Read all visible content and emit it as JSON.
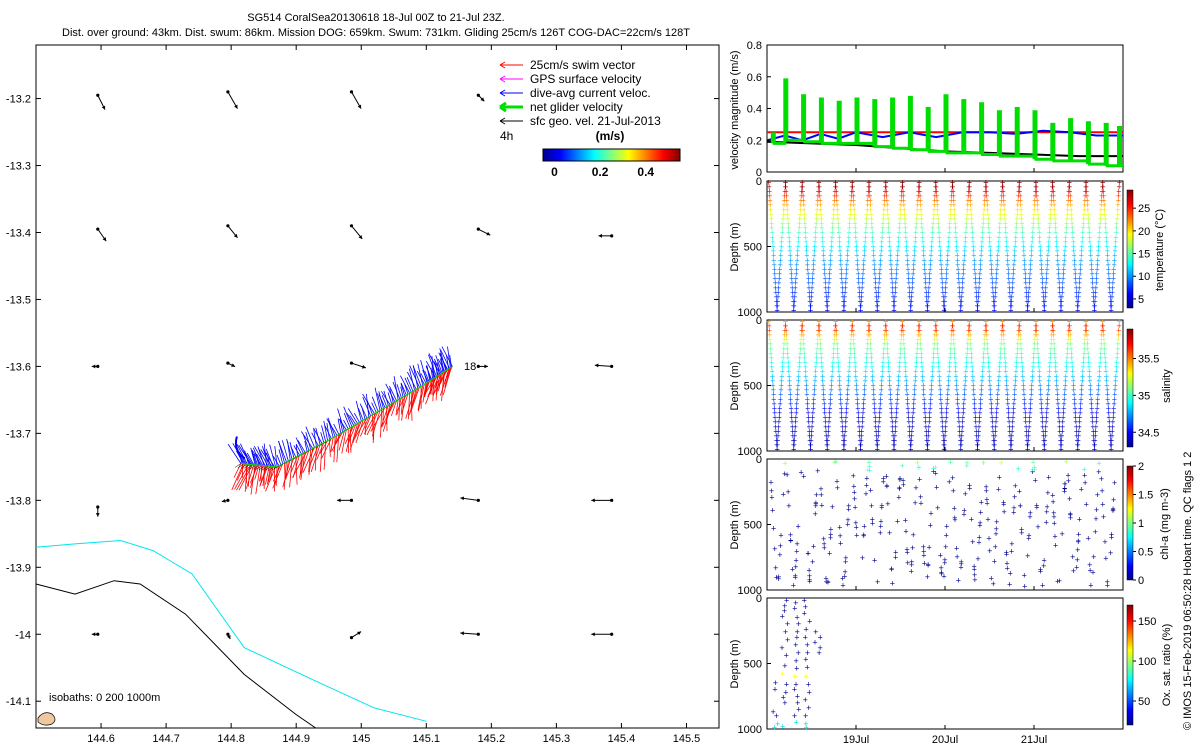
{
  "colors": {
    "swim": "#ff0000",
    "gps": "#ff00ff",
    "dac": "#0000ff",
    "net": "#00dd00",
    "geo": "#000000",
    "iso200": "#00e5ee",
    "iso1000": "#000000",
    "land": "#f0c8a0"
  },
  "chart_data": [
    {
      "id": "map",
      "type": "scatter",
      "title_line1": "SG514 CoralSea20130618 18-Jul 00Z to 21-Jul 23Z.",
      "title_line2": "Dist. over ground: 43km. Dist. swum: 86km. Mission DOG: 659km. Swum: 731km. Gliding 25cm/s 126T COG-DAC=22cm/s 128T",
      "xlim": [
        144.5,
        145.55
      ],
      "ylim": [
        -14.14,
        -13.12
      ],
      "xticks": [
        "144.6",
        "144.7",
        "144.8",
        "144.9",
        "145",
        "145.1",
        "145.2",
        "145.3",
        "145.4",
        "145.5"
      ],
      "xtick_values": [
        144.6,
        144.7,
        144.8,
        144.9,
        145.0,
        145.1,
        145.2,
        145.3,
        145.4,
        145.5
      ],
      "yticks": [
        "-13.2",
        "-13.3",
        "-13.4",
        "-13.5",
        "-13.6",
        "-13.7",
        "-13.8",
        "-13.9",
        "-14",
        "-14.1"
      ],
      "ytick_values": [
        -13.2,
        -13.3,
        -13.4,
        -13.5,
        -13.6,
        -13.7,
        -13.8,
        -13.9,
        -14.0,
        -14.1
      ],
      "legend": {
        "entries": [
          {
            "label": "25cm/s swim vector",
            "color_key": "swim",
            "thick": false
          },
          {
            "label": "GPS surface velocity",
            "color_key": "gps",
            "thick": false
          },
          {
            "label": "dive-avg current veloc.",
            "color_key": "dac",
            "thick": false
          },
          {
            "label": "net glider velocity",
            "color_key": "net",
            "thick": true
          },
          {
            "label": "sfc geo. vel. 21-Jul-2013",
            "color_key": "geo",
            "thick": false
          }
        ],
        "time_step": "4h",
        "colorbar_unit": "(m/s)",
        "colorbar_ticks": [
          "0",
          "0.2",
          "0.4"
        ],
        "colorbar_tick_values": [
          0,
          0.2,
          0.4
        ],
        "colorbar_range": [
          -0.05,
          0.55
        ],
        "placement": "top-right"
      },
      "track_label": "18",
      "isobath_label": "isobaths: 0   200  1000m",
      "track": {
        "lon": [
          144.815,
          144.87,
          144.95,
          145.03,
          145.1,
          145.14
        ],
        "lat": [
          -13.745,
          -13.75,
          -13.71,
          -13.665,
          -13.625,
          -13.6
        ]
      },
      "iso200": {
        "lon": [
          144.5,
          144.56,
          144.63,
          144.68,
          144.74,
          144.82,
          144.93,
          145.02,
          145.1
        ],
        "lat": [
          -13.87,
          -13.865,
          -13.86,
          -13.875,
          -13.91,
          -14.02,
          -14.07,
          -14.11,
          -14.13
        ]
      },
      "iso1000": {
        "lon": [
          144.5,
          144.56,
          144.62,
          144.66,
          144.73,
          144.82,
          144.9,
          144.93
        ],
        "lat": [
          -13.925,
          -13.94,
          -13.92,
          -13.925,
          -13.97,
          -14.06,
          -14.12,
          -14.14
        ]
      },
      "geo_vectors": [
        {
          "lon": 144.595,
          "lat": -13.195,
          "u": 0.06,
          "v": -0.12
        },
        {
          "lon": 144.795,
          "lat": -13.19,
          "u": 0.08,
          "v": -0.14
        },
        {
          "lon": 144.985,
          "lat": -13.19,
          "u": 0.08,
          "v": -0.14
        },
        {
          "lon": 145.18,
          "lat": -13.195,
          "u": 0.05,
          "v": -0.05
        },
        {
          "lon": 144.595,
          "lat": -13.395,
          "u": 0.07,
          "v": -0.1
        },
        {
          "lon": 144.795,
          "lat": -13.39,
          "u": 0.08,
          "v": -0.1
        },
        {
          "lon": 144.985,
          "lat": -13.39,
          "u": 0.09,
          "v": -0.11
        },
        {
          "lon": 145.18,
          "lat": -13.395,
          "u": 0.1,
          "v": -0.05
        },
        {
          "lon": 145.385,
          "lat": -13.405,
          "u": -0.11,
          "v": 0.0
        },
        {
          "lon": 144.595,
          "lat": -13.6,
          "u": -0.05,
          "v": 0.0
        },
        {
          "lon": 144.795,
          "lat": -13.595,
          "u": 0.06,
          "v": -0.03
        },
        {
          "lon": 144.985,
          "lat": -13.595,
          "u": 0.12,
          "v": -0.04
        },
        {
          "lon": 145.18,
          "lat": -13.6,
          "u": 0.08,
          "v": 0.0
        },
        {
          "lon": 145.385,
          "lat": -13.6,
          "u": -0.14,
          "v": 0.01
        },
        {
          "lon": 144.595,
          "lat": -13.81,
          "u": 0.0,
          "v": -0.08
        },
        {
          "lon": 144.795,
          "lat": -13.8,
          "u": -0.05,
          "v": -0.01
        },
        {
          "lon": 144.985,
          "lat": -13.8,
          "u": -0.12,
          "v": 0.0
        },
        {
          "lon": 145.18,
          "lat": -13.8,
          "u": -0.15,
          "v": 0.02
        },
        {
          "lon": 145.385,
          "lat": -13.8,
          "u": -0.17,
          "v": 0.0
        },
        {
          "lon": 144.595,
          "lat": -14.0,
          "u": -0.05,
          "v": 0.0
        },
        {
          "lon": 144.795,
          "lat": -14.0,
          "u": 0.02,
          "v": -0.04
        },
        {
          "lon": 144.985,
          "lat": -14.005,
          "u": 0.08,
          "v": 0.05
        },
        {
          "lon": 145.18,
          "lat": -14.0,
          "u": -0.15,
          "v": 0.01
        },
        {
          "lon": 145.385,
          "lat": -14.0,
          "u": -0.17,
          "v": 0.0
        }
      ]
    },
    {
      "id": "velocity",
      "type": "line",
      "ylabel": "velocity magnitude (m/s)",
      "ylim": [
        0,
        0.8
      ],
      "yticks": [
        "0",
        "0.2",
        "0.4",
        "0.6",
        "0.8"
      ],
      "ytick_values": [
        0,
        0.2,
        0.4,
        0.6,
        0.8
      ],
      "xlim_days": [
        18.0,
        22.0
      ],
      "series": [
        {
          "name": "swim",
          "color_key": "swim",
          "x": [
            18.0,
            22.0
          ],
          "y": [
            0.25,
            0.25
          ]
        },
        {
          "name": "dive-avg current",
          "color_key": "dac",
          "x": [
            18.0,
            18.2,
            18.4,
            18.6,
            18.8,
            19.0,
            19.3,
            19.6,
            19.9,
            20.2,
            20.5,
            20.8,
            21.1,
            21.4,
            21.7,
            22.0
          ],
          "y": [
            0.2,
            0.23,
            0.2,
            0.24,
            0.21,
            0.25,
            0.22,
            0.25,
            0.22,
            0.25,
            0.25,
            0.24,
            0.26,
            0.25,
            0.23,
            0.23
          ]
        },
        {
          "name": "sfc geo. vel.",
          "color_key": "geo",
          "x": [
            18.0,
            18.5,
            19.0,
            19.5,
            20.0,
            20.5,
            21.0,
            21.5,
            22.0
          ],
          "y": [
            0.19,
            0.18,
            0.17,
            0.15,
            0.13,
            0.12,
            0.11,
            0.1,
            0.1
          ]
        },
        {
          "name": "net glider velocity",
          "color_key": "net",
          "spike_days": [
            18.06,
            18.2,
            18.4,
            18.6,
            18.8,
            19.0,
            19.2,
            19.4,
            19.6,
            19.8,
            20.0,
            20.2,
            20.4,
            20.6,
            20.8,
            21.0,
            21.2,
            21.4,
            21.6,
            21.8,
            21.95
          ],
          "spike_vals": [
            0.24,
            0.58,
            0.48,
            0.46,
            0.44,
            0.46,
            0.45,
            0.46,
            0.47,
            0.4,
            0.48,
            0.45,
            0.43,
            0.38,
            0.4,
            0.38,
            0.3,
            0.33,
            0.31,
            0.3,
            0.28
          ],
          "base_vals": [
            0.18,
            0.2,
            0.19,
            0.18,
            0.18,
            0.18,
            0.16,
            0.15,
            0.14,
            0.13,
            0.12,
            0.12,
            0.11,
            0.1,
            0.1,
            0.08,
            0.07,
            0.07,
            0.05,
            0.04,
            0.04
          ]
        }
      ]
    },
    {
      "id": "temperature",
      "type": "scatter",
      "ylabel": "Depth (m)",
      "ylim": [
        1000,
        0
      ],
      "yticks": [
        "0",
        "500",
        "1000"
      ],
      "ytick_values": [
        0,
        500,
        1000
      ],
      "colorbar_label": "temperature (°C)",
      "colorbar_ticks": [
        "5",
        "10",
        "15",
        "20",
        "25"
      ],
      "colorbar_tick_values": [
        5,
        10,
        15,
        20,
        25
      ],
      "colorbar_range": [
        3,
        29
      ],
      "profiles": 21,
      "min_depth": 10,
      "max_depth": 990
    },
    {
      "id": "salinity",
      "type": "scatter",
      "ylabel": "Depth (m)",
      "ylim": [
        1000,
        0
      ],
      "yticks": [
        "0",
        "500",
        "1000"
      ],
      "ytick_values": [
        0,
        500,
        1000
      ],
      "colorbar_label": "salinity",
      "colorbar_ticks": [
        "34.5",
        "35",
        "35.5"
      ],
      "colorbar_tick_values": [
        34.5,
        35.0,
        35.5
      ],
      "colorbar_range": [
        34.3,
        35.9
      ],
      "profiles": 21,
      "min_depth": 10,
      "max_depth": 990
    },
    {
      "id": "chla",
      "type": "scatter",
      "ylabel": "Depth (m)",
      "ylim": [
        1000,
        0
      ],
      "yticks": [
        "0",
        "500",
        "1000"
      ],
      "ytick_values": [
        0,
        500,
        1000
      ],
      "colorbar_label": "chl-a (mg m-3)",
      "colorbar_ticks": [
        "0",
        "0.5",
        "1",
        "1.5",
        "2"
      ],
      "colorbar_tick_values": [
        0,
        0.5,
        1.0,
        1.5,
        2.0
      ],
      "colorbar_range": [
        0,
        2
      ],
      "profiles": 42
    },
    {
      "id": "oxygen",
      "type": "scatter",
      "ylabel": "Depth (m)",
      "ylim": [
        1000,
        0
      ],
      "yticks": [
        "0",
        "500",
        "1000"
      ],
      "ytick_values": [
        0,
        500,
        1000
      ],
      "colorbar_label": "Ox. sat. ratio (%)",
      "colorbar_ticks": [
        "50",
        "100",
        "150"
      ],
      "colorbar_tick_values": [
        50,
        100,
        150
      ],
      "colorbar_range": [
        20,
        170
      ],
      "xticks": [
        "19Jul",
        "20Jul",
        "21Jul"
      ],
      "xtick_values": [
        19,
        20,
        21
      ],
      "profiles": [
        18.1,
        18.2,
        18.33,
        18.45,
        18.57
      ],
      "depth_hits": [
        [
          900,
          960,
          990,
          870,
          650,
          700
        ],
        [
          20,
          60,
          100,
          140,
          200,
          260,
          320,
          380,
          440,
          520,
          580,
          660,
          720,
          760,
          800,
          980
        ],
        [
          40,
          80,
          150,
          200,
          260,
          300,
          360,
          420,
          480,
          540,
          600,
          660,
          700,
          750,
          800,
          850,
          900,
          950
        ],
        [
          20,
          70,
          120,
          180,
          240,
          300,
          360,
          420,
          470,
          530,
          600,
          660,
          720,
          780,
          840,
          900,
          960,
          990
        ],
        [
          260,
          300,
          340,
          380,
          420
        ]
      ]
    }
  ],
  "side_text": "© IMOS 15-Feb-2019 06:50:28 Hobart time. QC flags 1  2"
}
